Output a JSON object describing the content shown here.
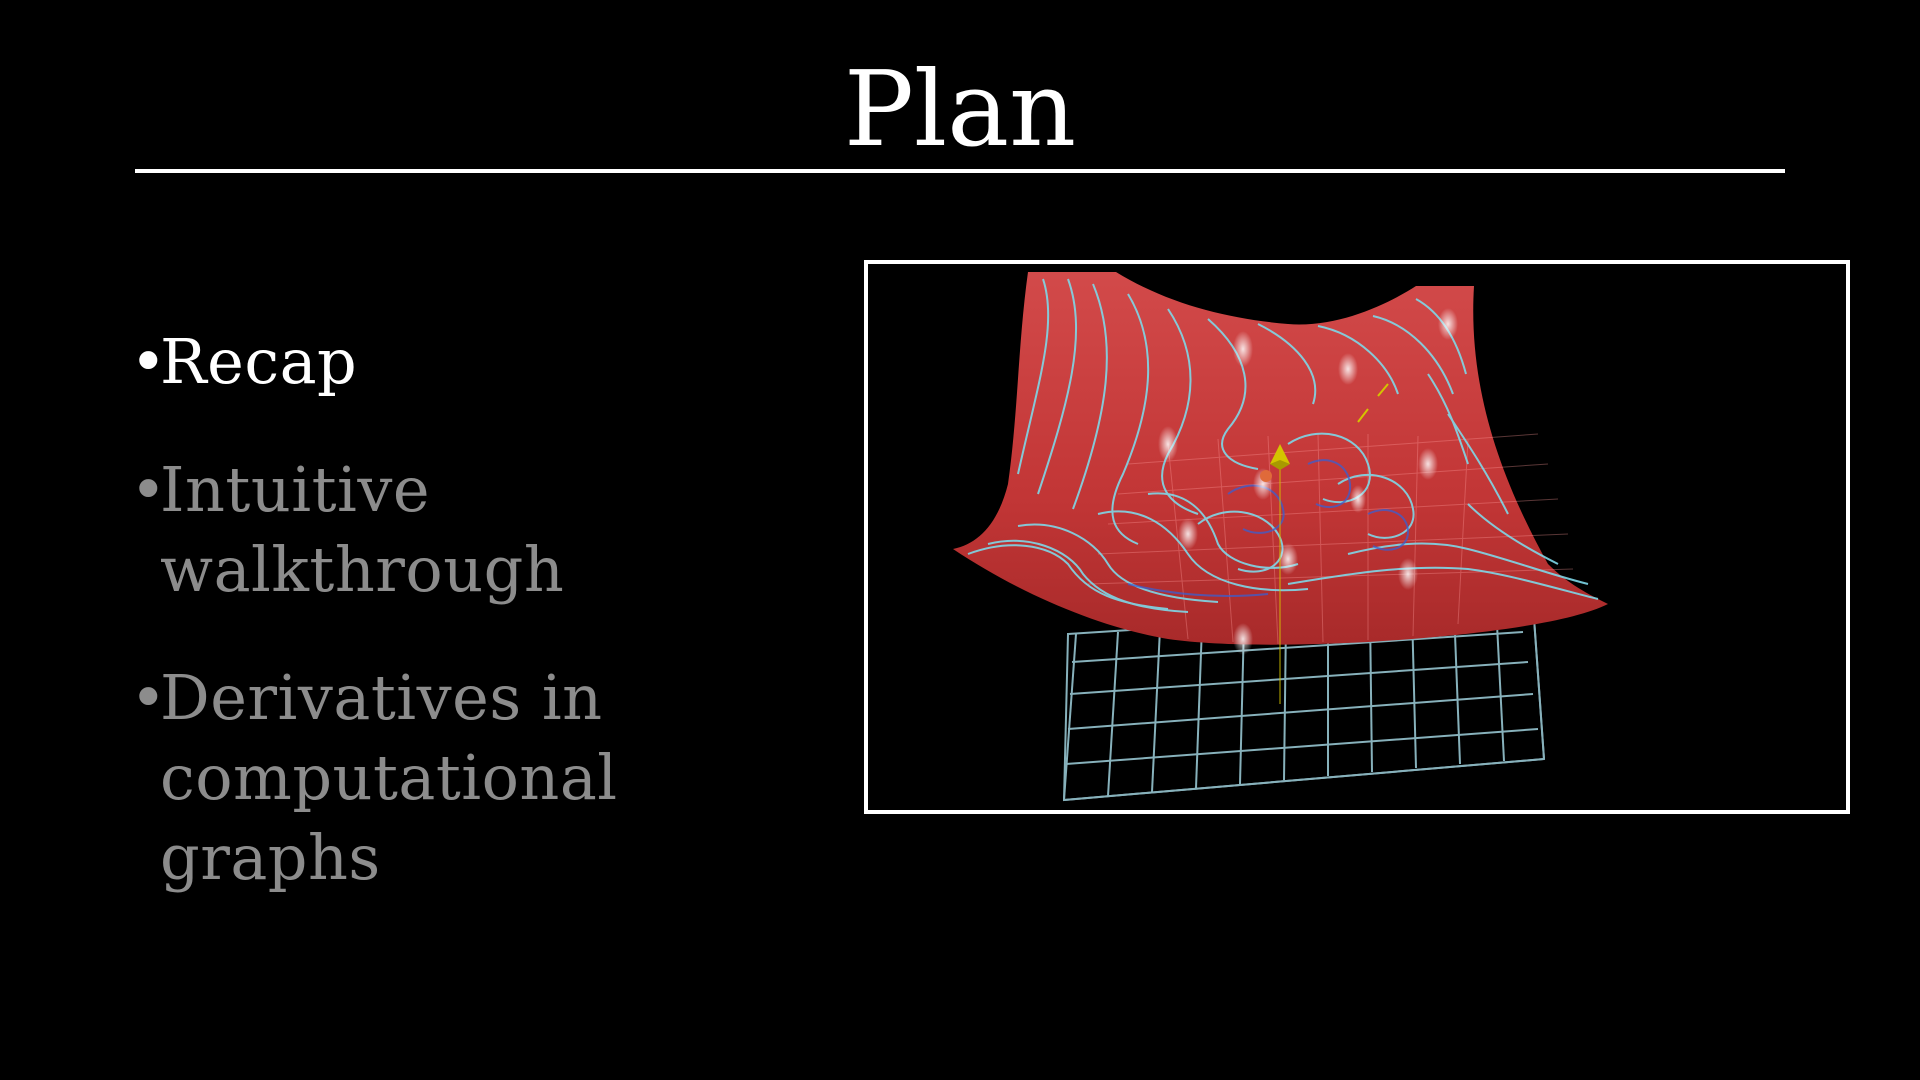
{
  "slide": {
    "title": "Plan",
    "bullets": [
      {
        "text": "Recap",
        "state": "active"
      },
      {
        "text": "Intuitive walkthrough",
        "state": "inactive"
      },
      {
        "text": "Derivatives in computational graphs",
        "state": "inactive"
      }
    ]
  },
  "colors": {
    "background": "#000000",
    "title": "#ffffff",
    "active_bullet": "#ffffff",
    "inactive_bullet": "#8c8c8c",
    "surface": "#c83c3c",
    "contour": "#7fd8e8",
    "grid": "#9fd0dc",
    "marker": "#d4c400"
  },
  "figure": {
    "type": "3d-surface-contour-illustration"
  }
}
